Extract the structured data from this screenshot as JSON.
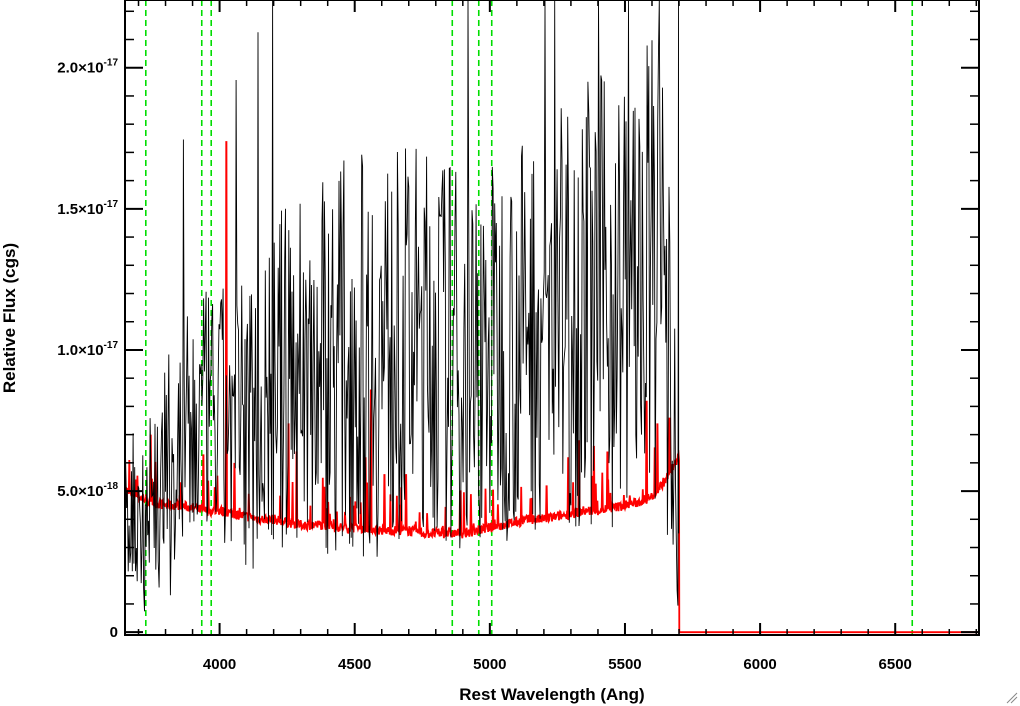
{
  "chart_data": {
    "type": "line",
    "title": "",
    "xlabel": "Rest Wavelength (Ang)",
    "ylabel": "Relative Flux (cgs)",
    "xlim": [
      3650,
      6810
    ],
    "ylim": [
      -1e-19,
      2.24e-17
    ],
    "x_ticks": [
      {
        "value": 4000,
        "label": "4000"
      },
      {
        "value": 4500,
        "label": "4500"
      },
      {
        "value": 5000,
        "label": "5000"
      },
      {
        "value": 5500,
        "label": "5500"
      },
      {
        "value": 6000,
        "label": "6000"
      },
      {
        "value": 6500,
        "label": "6500"
      }
    ],
    "y_ticks": [
      {
        "value": 0,
        "mant": "0",
        "exp": ""
      },
      {
        "value": 5e-18,
        "mant": "5.0×10",
        "exp": "-18"
      },
      {
        "value": 1e-17,
        "mant": "1.0×10",
        "exp": "-17"
      },
      {
        "value": 1.5e-17,
        "mant": "1.5×10",
        "exp": "-17"
      },
      {
        "value": 2e-17,
        "mant": "2.0×10",
        "exp": "-17"
      }
    ],
    "grid": false,
    "legend": "none",
    "reference_lines": {
      "color": "#00dd00",
      "style": "dashed",
      "x": [
        3727,
        3934,
        3969,
        4861,
        4959,
        5007,
        6563
      ]
    },
    "series": [
      {
        "color": "#000000",
        "role": "flux",
        "x": [
          3650,
          3700,
          3750,
          3800,
          3850,
          3900,
          3950,
          4000,
          4050,
          4100,
          4150,
          4200,
          4250,
          4300,
          4350,
          4400,
          4450,
          4500,
          4550,
          4600,
          4650,
          4700,
          4750,
          4800,
          4850,
          4900,
          4950,
          5000,
          5050,
          5100,
          5150,
          5200,
          5250,
          5300,
          5350,
          5400,
          5450,
          5500,
          5550,
          5600,
          5650,
          5700
        ],
        "values": [
          4.6e-18,
          4.2e-18,
          4.8e-18,
          5.3e-18,
          6e-18,
          6.8e-18,
          7.8e-18,
          7.4e-18,
          7.2e-18,
          7.5e-18,
          8e-18,
          8.5e-18,
          9e-18,
          9.4e-18,
          9.6e-18,
          9.8e-18,
          9.9e-18,
          1e-17,
          9.8e-18,
          9.9e-18,
          1.01e-17,
          1.02e-17,
          1.03e-17,
          1.02e-17,
          1e-17,
          9.4e-18,
          9.6e-18,
          1e-17,
          1.02e-17,
          1.04e-17,
          1.08e-17,
          1.1e-17,
          1.12e-17,
          1.16e-17,
          1.18e-17,
          1.16e-17,
          1.18e-17,
          1.2e-17,
          1.23e-17,
          1.26e-17,
          1.25e-17,
          0
        ],
        "noise": [
          2.2e-18,
          2.6e-18,
          3e-18,
          3.2e-18,
          3.5e-18,
          3.5e-18,
          3.2e-18,
          3.6e-18,
          3.8e-18,
          4e-18,
          4.2e-18,
          4.4e-18,
          4.8e-18,
          5e-18,
          5e-18,
          5.2e-18,
          5.2e-18,
          5.4e-18,
          5.4e-18,
          5.4e-18,
          5.2e-18,
          5.2e-18,
          5.2e-18,
          5.2e-18,
          5.2e-18,
          5e-18,
          5e-18,
          5e-18,
          5.2e-18,
          5.2e-18,
          5.4e-18,
          5.6e-18,
          5.6e-18,
          5.8e-18,
          6e-18,
          6e-18,
          6e-18,
          6e-18,
          6.2e-18,
          6.4e-18,
          6.6e-18,
          0
        ]
      },
      {
        "color": "#ff0000",
        "role": "error",
        "x": [
          3650,
          3700,
          3750,
          3800,
          3850,
          3900,
          3950,
          4000,
          4050,
          4100,
          4150,
          4200,
          4250,
          4300,
          4350,
          4400,
          4450,
          4500,
          4550,
          4600,
          4650,
          4700,
          4750,
          4800,
          4850,
          4900,
          4950,
          5000,
          5050,
          5100,
          5150,
          5200,
          5250,
          5300,
          5350,
          5400,
          5450,
          5500,
          5550,
          5600,
          5650,
          5700,
          5701,
          6810
        ],
        "values": [
          5e-18,
          4.8e-18,
          4.6e-18,
          4.5e-18,
          4.5e-18,
          4.4e-18,
          4.3e-18,
          4.3e-18,
          4.2e-18,
          4.1e-18,
          4e-18,
          4e-18,
          3.9e-18,
          3.8e-18,
          3.8e-18,
          3.8e-18,
          3.7e-18,
          3.7e-18,
          3.7e-18,
          3.6e-18,
          3.6e-18,
          3.6e-18,
          3.5e-18,
          3.5e-18,
          3.5e-18,
          3.5e-18,
          3.6e-18,
          3.7e-18,
          3.8e-18,
          3.9e-18,
          4e-18,
          4e-18,
          4.1e-18,
          4.2e-18,
          4.3e-18,
          4.3e-18,
          4.4e-18,
          4.5e-18,
          4.6e-18,
          4.8e-18,
          5.4e-18,
          6.2e-18,
          0,
          0
        ],
        "spikes": [
          {
            "x": 4025,
            "y": 1.74e-17
          },
          {
            "x": 3745,
            "y": 7e-18
          },
          {
            "x": 3940,
            "y": 6.3e-18
          },
          {
            "x": 4055,
            "y": 6e-18
          },
          {
            "x": 4255,
            "y": 7.4e-18
          },
          {
            "x": 4285,
            "y": 6.4e-18
          },
          {
            "x": 4540,
            "y": 6.2e-18
          },
          {
            "x": 4560,
            "y": 8.6e-18
          },
          {
            "x": 4610,
            "y": 5.6e-18
          },
          {
            "x": 4690,
            "y": 5.6e-18
          },
          {
            "x": 4890,
            "y": 5e-18
          },
          {
            "x": 5210,
            "y": 5.2e-18
          },
          {
            "x": 5290,
            "y": 6.2e-18
          },
          {
            "x": 5330,
            "y": 6.8e-18
          },
          {
            "x": 5385,
            "y": 6.6e-18
          },
          {
            "x": 5435,
            "y": 6.4e-18
          },
          {
            "x": 5580,
            "y": 8.2e-18
          },
          {
            "x": 5620,
            "y": 7.4e-18
          },
          {
            "x": 5665,
            "y": 7.6e-18
          }
        ]
      }
    ]
  }
}
